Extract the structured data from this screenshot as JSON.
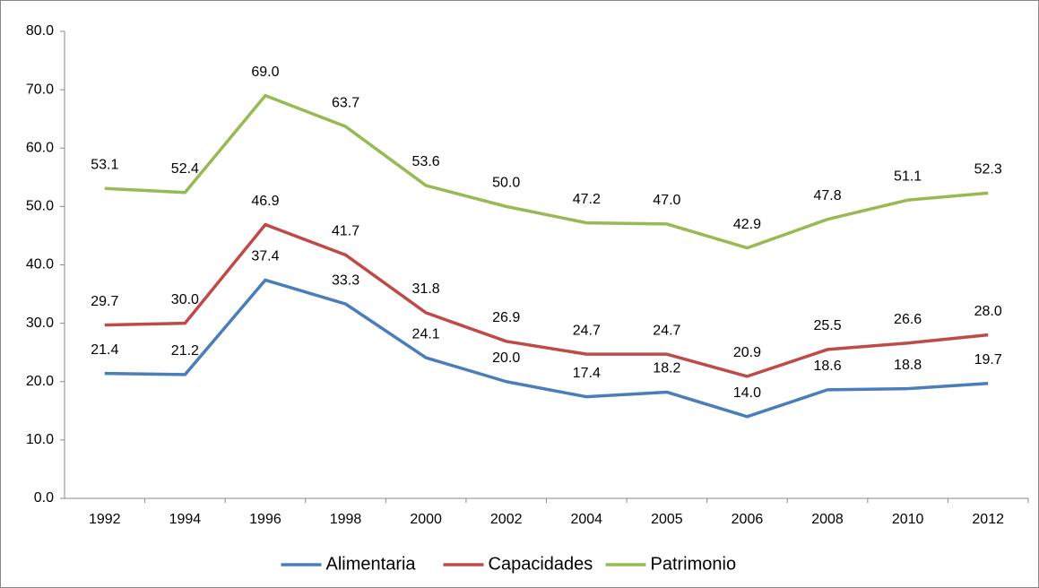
{
  "chart_data": {
    "type": "line",
    "categories": [
      "1992",
      "1994",
      "1996",
      "1998",
      "2000",
      "2002",
      "2004",
      "2005",
      "2006",
      "2008",
      "2010",
      "2012"
    ],
    "series": [
      {
        "name": "Alimentaria",
        "color": "#4a7ebb",
        "values": [
          21.4,
          21.2,
          37.4,
          33.3,
          24.1,
          20.0,
          17.4,
          18.2,
          14.0,
          18.6,
          18.8,
          19.7
        ],
        "value_labels": [
          "21.4",
          "21.2",
          "37.4",
          "33.3",
          "24.1",
          "20.0",
          "17.4",
          "18.2",
          "14.0",
          "18.6",
          "18.8",
          "19.7"
        ]
      },
      {
        "name": "Capacidades",
        "color": "#be4b48",
        "values": [
          29.7,
          30.0,
          46.9,
          41.7,
          31.8,
          26.9,
          24.7,
          24.7,
          20.9,
          25.5,
          26.6,
          28.0
        ],
        "value_labels": [
          "29.7",
          "30.0",
          "46.9",
          "41.7",
          "31.8",
          "26.9",
          "24.7",
          "24.7",
          "20.9",
          "25.5",
          "26.6",
          "28.0"
        ]
      },
      {
        "name": "Patrimonio",
        "color": "#98b954",
        "values": [
          53.1,
          52.4,
          69.0,
          63.7,
          53.6,
          50.0,
          47.2,
          47.0,
          42.9,
          47.8,
          51.1,
          52.3
        ],
        "value_labels": [
          "53.1",
          "52.4",
          "69.0",
          "63.7",
          "53.6",
          "50.0",
          "47.2",
          "47.0",
          "42.9",
          "47.8",
          "51.1",
          "52.3"
        ]
      }
    ],
    "ylim": [
      0,
      80
    ],
    "yticks": [
      {
        "value": 0,
        "label": "0.0"
      },
      {
        "value": 10,
        "label": "10.0"
      },
      {
        "value": 20,
        "label": "20.0"
      },
      {
        "value": 30,
        "label": "30.0"
      },
      {
        "value": 40,
        "label": "40.0"
      },
      {
        "value": 50,
        "label": "50.0"
      },
      {
        "value": 60,
        "label": "60.0"
      },
      {
        "value": 70,
        "label": "70.0"
      },
      {
        "value": 80,
        "label": "80.0"
      }
    ],
    "legend": "bottom"
  }
}
